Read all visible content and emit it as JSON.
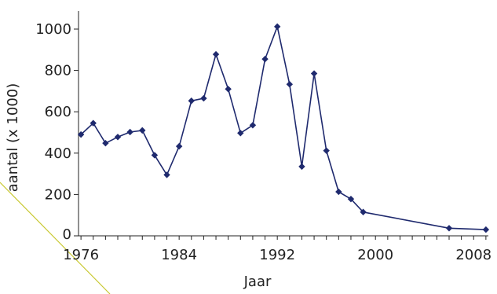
{
  "chart_data": {
    "type": "line",
    "title": "",
    "xlabel": "Jaar",
    "ylabel": "aantal (x 1000)",
    "xlim": [
      1975.8,
      2009.2
    ],
    "ylim": [
      0,
      1000
    ],
    "x_ticks": [
      1976,
      1984,
      1992,
      2000,
      2008
    ],
    "y_ticks": [
      0,
      200,
      400,
      600,
      800,
      1000
    ],
    "grid": false,
    "legend": "none",
    "series": [
      {
        "x": [
          1976,
          1977,
          1978,
          1979,
          1980,
          1981,
          1982,
          1983,
          1984,
          1985,
          1986,
          1987,
          1988,
          1989,
          1990,
          1991,
          1992,
          1993,
          1994,
          1995,
          1996,
          1997,
          1998,
          1999,
          2006,
          2009
        ],
        "values": [
          490,
          545,
          448,
          478,
          502,
          510,
          390,
          295,
          433,
          653,
          665,
          878,
          710,
          497,
          535,
          855,
          1012,
          733,
          335,
          785,
          412,
          213,
          178,
          115,
          37,
          30
        ]
      }
    ],
    "colors": {
      "series": "#1f2a6e",
      "axis": "#222222",
      "decor_line": "#c8c830"
    }
  }
}
